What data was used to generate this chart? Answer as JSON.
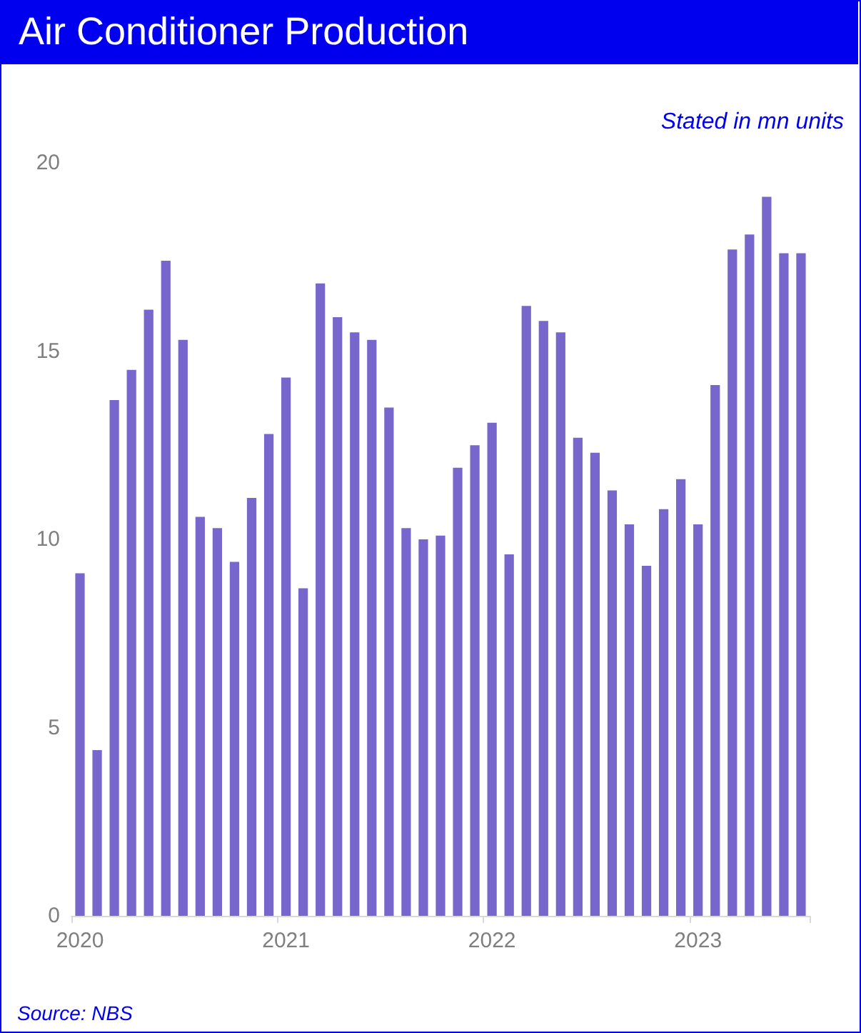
{
  "chart_data": {
    "type": "bar",
    "title": "Air Conditioner Production",
    "subtitle": "Stated in mn units",
    "annotations": [
      "Source: NBS"
    ],
    "categories": [
      "2020",
      null,
      null,
      null,
      null,
      null,
      null,
      null,
      null,
      null,
      null,
      null,
      "2021",
      null,
      null,
      null,
      null,
      null,
      null,
      null,
      null,
      null,
      null,
      null,
      "2022",
      null,
      null,
      null,
      null,
      null,
      null,
      null,
      null,
      null,
      null,
      null,
      "2023",
      null,
      null,
      null,
      null,
      null,
      null
    ],
    "values": [
      9.1,
      4.4,
      13.7,
      14.5,
      16.1,
      17.4,
      15.3,
      10.6,
      10.3,
      9.4,
      11.1,
      12.8,
      14.3,
      8.7,
      16.8,
      15.9,
      15.5,
      15.3,
      13.5,
      10.3,
      10.0,
      10.1,
      11.9,
      12.5,
      13.1,
      9.6,
      16.2,
      15.8,
      15.5,
      12.7,
      12.3,
      11.3,
      10.4,
      9.3,
      10.8,
      11.6,
      10.4,
      14.1,
      17.7,
      18.1,
      19.1,
      17.6,
      17.6
    ],
    "color": "#7766cc",
    "ylim": [
      0,
      20
    ],
    "yticks": [
      0,
      5,
      10,
      15,
      20
    ],
    "grid": false
  }
}
